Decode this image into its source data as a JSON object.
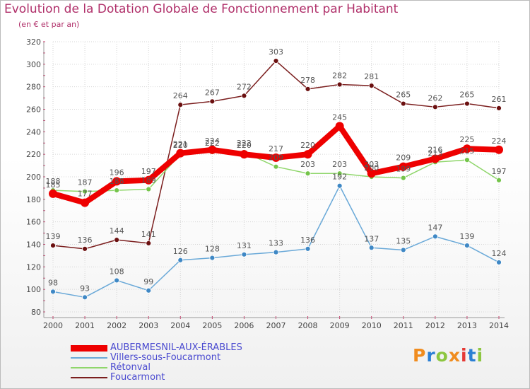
{
  "header": {
    "title": "Evolution de la Dotation Globale de Fonctionnement par Habitant",
    "subtitle": "(en € et par an)"
  },
  "logo": {
    "text": "Proxiti",
    "colors": [
      "#f08c1e",
      "#2a7fd4",
      "#8cc63f",
      "#f08c1e",
      "#e53935",
      "#2a7fd4",
      "#8cc63f"
    ]
  },
  "chart_data": {
    "type": "line",
    "title": "Evolution de la Dotation Globale de Fonctionnement par Habitant",
    "subtitle": "(en € et par an)",
    "xlabel": "",
    "ylabel": "",
    "ylim": [
      80,
      320
    ],
    "y_ticks": [
      80,
      100,
      120,
      140,
      160,
      180,
      200,
      220,
      240,
      260,
      280,
      300,
      320
    ],
    "x": [
      "2000",
      "2001",
      "2002",
      "2003",
      "2004",
      "2005",
      "2006",
      "2007",
      "2008",
      "2009",
      "2010",
      "2011",
      "2012",
      "2013",
      "2014"
    ],
    "grid": true,
    "legend_position": "bottom-left",
    "series": [
      {
        "name": "Foucarmont",
        "color": "#7b1e1e",
        "point_color": "#6b1010",
        "values": [
          139,
          136,
          144,
          141,
          264,
          267,
          272,
          303,
          278,
          282,
          281,
          265,
          262,
          265,
          261
        ]
      },
      {
        "name": "Villers-sous-Foucarmont",
        "color": "#6aa9d8",
        "point_color": "#3f88c5",
        "values": [
          98,
          93,
          108,
          99,
          126,
          128,
          131,
          133,
          136,
          192,
          137,
          135,
          147,
          139,
          124
        ]
      },
      {
        "name": "Rétonval",
        "color": "#8fd66b",
        "point_color": "#74c44a",
        "values": [
          188,
          187,
          188,
          189,
          220,
          222,
          222,
          209,
          203,
          203,
          200,
          199,
          213,
          215,
          197
        ]
      },
      {
        "name": "AUBERMESNIL-AUX-ÉRABLES",
        "color": "#ee0000",
        "point_color": "#ee0000",
        "values": [
          185,
          177,
          196,
          197,
          221,
          224,
          220,
          217,
          220,
          245,
          203,
          209,
          216,
          225,
          224
        ]
      }
    ],
    "legend_order": [
      "AUBERMESNIL-AUX-ÉRABLES",
      "Villers-sous-Foucarmont",
      "Rétonval",
      "Foucarmont"
    ]
  }
}
